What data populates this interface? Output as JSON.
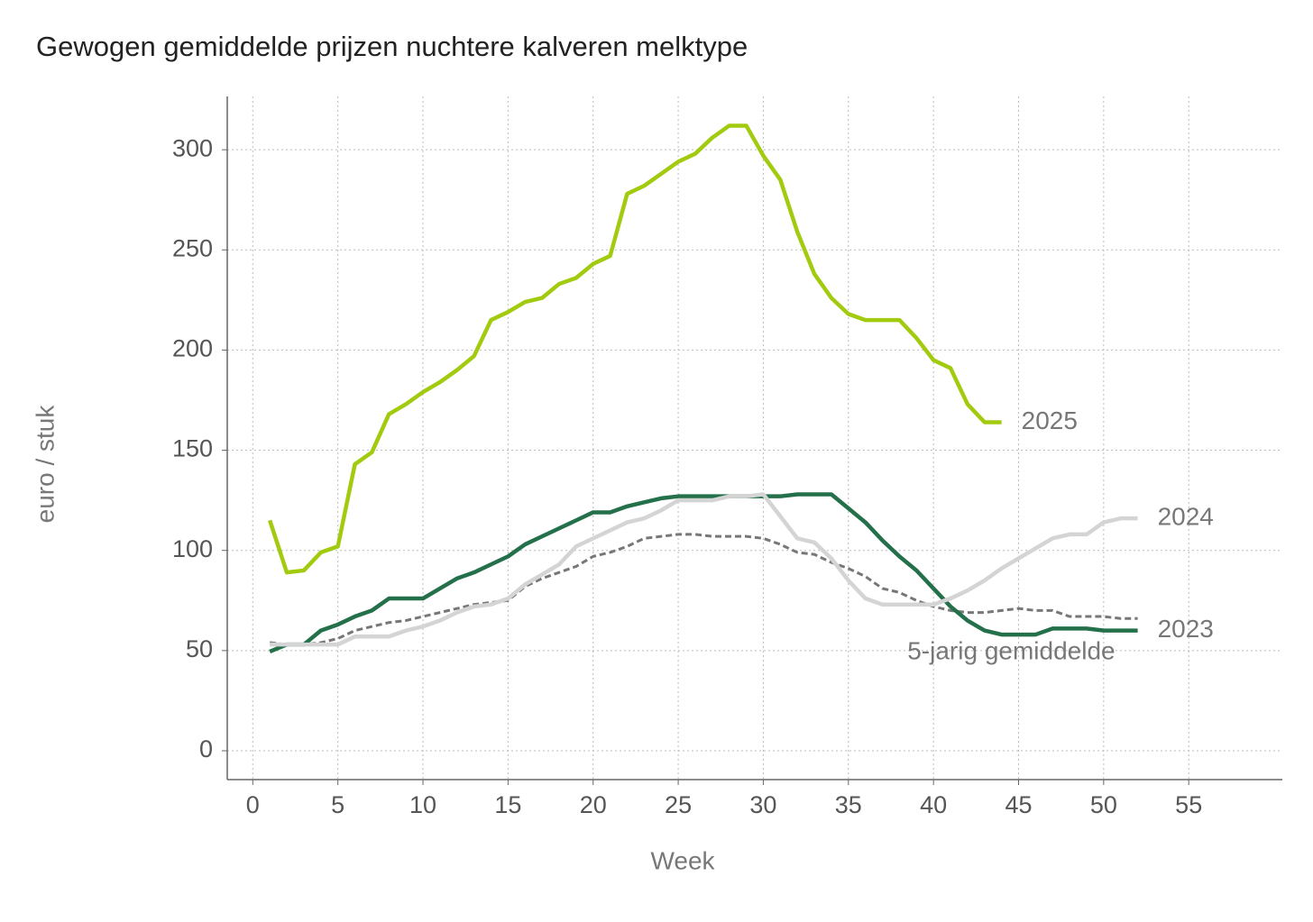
{
  "chart_data": {
    "type": "line",
    "title": "Gewogen gemiddelde prijzen nuchtere kalveren melktype",
    "x_label": "Week",
    "y_label": "euro / stuk",
    "x": [
      1,
      2,
      3,
      4,
      5,
      6,
      7,
      8,
      9,
      10,
      11,
      12,
      13,
      14,
      15,
      16,
      17,
      18,
      19,
      20,
      21,
      22,
      23,
      24,
      25,
      26,
      27,
      28,
      29,
      30,
      31,
      32,
      33,
      34,
      35,
      36,
      37,
      38,
      39,
      40,
      41,
      42,
      43,
      44,
      45,
      46,
      47,
      48,
      49,
      50,
      51,
      52
    ],
    "series": [
      {
        "name": "2025",
        "color": "#a2cb10",
        "values": [
          115,
          89,
          90,
          99,
          102,
          143,
          149,
          168,
          173,
          179,
          184,
          190,
          197,
          215,
          219,
          224,
          226,
          233,
          236,
          243,
          247,
          278,
          282,
          288,
          294,
          298,
          306,
          312,
          312,
          297,
          285,
          259,
          238,
          226,
          218,
          215,
          215,
          215,
          206,
          195,
          191,
          173,
          164,
          164,
          null,
          null,
          null,
          null,
          null,
          null,
          null,
          null
        ]
      },
      {
        "name": "2024",
        "color": "#d4d4d4",
        "values": [
          53,
          53,
          53,
          53,
          53,
          57,
          57,
          57,
          60,
          62,
          65,
          69,
          72,
          73,
          76,
          83,
          88,
          93,
          102,
          106,
          110,
          114,
          116,
          120,
          125,
          125,
          125,
          127,
          127,
          128,
          117,
          106,
          104,
          96,
          85,
          76,
          73,
          73,
          73,
          73,
          76,
          80,
          85,
          91,
          96,
          101,
          106,
          108,
          108,
          114,
          116,
          116
        ]
      },
      {
        "name": "2023",
        "color": "#23704a",
        "values": [
          49.5,
          53,
          53,
          60,
          63,
          67,
          70,
          76,
          76,
          76,
          81,
          86,
          89,
          93,
          97,
          103,
          107,
          111,
          115,
          119,
          119,
          122,
          124,
          126,
          127,
          127,
          127,
          127,
          127,
          127,
          127,
          128,
          128,
          128,
          121,
          114,
          105,
          97,
          90,
          81,
          72,
          65,
          60,
          58,
          58,
          58,
          61,
          61,
          61,
          60,
          60,
          60
        ]
      },
      {
        "name": "5-jarig gemiddelde",
        "color": "#777777",
        "dashed": true,
        "values": [
          54,
          53,
          53,
          54,
          56,
          60,
          62,
          64,
          65,
          67,
          69,
          71,
          73,
          74,
          75,
          82,
          86,
          89,
          92,
          97,
          99,
          102,
          106,
          107,
          108,
          108,
          107,
          107,
          107,
          106,
          103,
          99,
          98,
          94,
          91,
          87,
          81,
          79,
          75,
          72,
          70,
          69,
          69,
          70,
          71,
          70,
          70,
          67,
          67,
          67,
          66,
          66
        ]
      }
    ],
    "xlim": [
      -1.5,
      60.5
    ],
    "ylim": [
      -14.4,
      326.6
    ],
    "xticks": [
      0,
      5,
      10,
      15,
      20,
      25,
      30,
      35,
      40,
      45,
      50,
      55
    ],
    "yticks": [
      0,
      50,
      100,
      150,
      200,
      250,
      300
    ],
    "grid": true
  }
}
